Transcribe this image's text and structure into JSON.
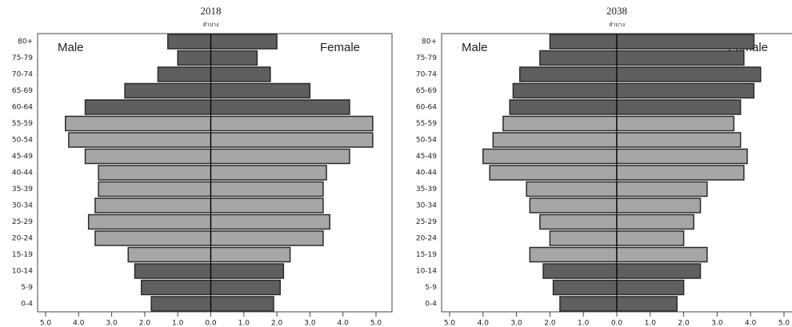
{
  "chart_data": [
    {
      "type": "pyramid",
      "title": "2018",
      "subtitle": "ลำปาง",
      "categories": [
        "0-4",
        "5-9",
        "10-14",
        "15-19",
        "20-24",
        "25-29",
        "30-34",
        "35-39",
        "40-44",
        "45-49",
        "50-54",
        "55-59",
        "60-64",
        "65-69",
        "70-74",
        "75-79",
        "80+"
      ],
      "colors": [
        "#5f5f5f",
        "#5f5f5f",
        "#5f5f5f",
        "#a6a6a6",
        "#a6a6a6",
        "#a6a6a6",
        "#a6a6a6",
        "#a6a6a6",
        "#a6a6a6",
        "#a6a6a6",
        "#a6a6a6",
        "#a6a6a6",
        "#5f5f5f",
        "#5f5f5f",
        "#5f5f5f",
        "#5f5f5f",
        "#5f5f5f"
      ],
      "series": [
        {
          "name": "Male",
          "values": [
            1.8,
            2.1,
            2.3,
            2.5,
            3.5,
            3.7,
            3.5,
            3.4,
            3.4,
            3.8,
            4.3,
            4.4,
            3.8,
            2.6,
            1.6,
            1.0,
            1.3
          ]
        },
        {
          "name": "Female",
          "values": [
            1.9,
            2.1,
            2.2,
            2.4,
            3.4,
            3.6,
            3.4,
            3.4,
            3.5,
            4.2,
            4.9,
            4.9,
            4.2,
            3.0,
            1.8,
            1.4,
            2.0
          ]
        }
      ],
      "xlim": [
        -5,
        5
      ],
      "xticks": [
        {
          "value": -5,
          "label": "5.0"
        },
        {
          "value": -4,
          "label": "4.0"
        },
        {
          "value": -3,
          "label": "3.0"
        },
        {
          "value": -2,
          "label": "2.0"
        },
        {
          "value": -1,
          "label": "1.0"
        },
        {
          "value": 0,
          "label": "0.0"
        },
        {
          "value": 1,
          "label": "1.0"
        },
        {
          "value": 2,
          "label": "2.0"
        },
        {
          "value": 3,
          "label": "3.0"
        },
        {
          "value": 4,
          "label": "4.0"
        },
        {
          "value": 5,
          "label": "5.0"
        }
      ]
    },
    {
      "type": "pyramid",
      "title": "2038",
      "subtitle": "ลำปาง",
      "categories": [
        "0-4",
        "5-9",
        "10-14",
        "15-19",
        "20-24",
        "25-29",
        "30-34",
        "35-39",
        "40-44",
        "45-49",
        "50-54",
        "55-59",
        "60-64",
        "65-69",
        "70-74",
        "75-79",
        "80+"
      ],
      "colors": [
        "#5f5f5f",
        "#5f5f5f",
        "#5f5f5f",
        "#a6a6a6",
        "#a6a6a6",
        "#a6a6a6",
        "#a6a6a6",
        "#a6a6a6",
        "#a6a6a6",
        "#a6a6a6",
        "#a6a6a6",
        "#a6a6a6",
        "#5f5f5f",
        "#5f5f5f",
        "#5f5f5f",
        "#5f5f5f",
        "#5f5f5f"
      ],
      "series": [
        {
          "name": "Male",
          "values": [
            1.7,
            1.9,
            2.2,
            2.6,
            2.0,
            2.3,
            2.6,
            2.7,
            3.8,
            4.0,
            3.7,
            3.4,
            3.2,
            3.1,
            2.9,
            2.3,
            2.0
          ]
        },
        {
          "name": "Female",
          "values": [
            1.8,
            2.0,
            2.5,
            2.7,
            2.0,
            2.3,
            2.5,
            2.7,
            3.8,
            3.9,
            3.7,
            3.5,
            3.7,
            4.1,
            4.3,
            3.8,
            4.1
          ]
        }
      ],
      "xlim": [
        -5,
        5
      ],
      "xticks": [
        {
          "value": -5,
          "label": "5.0"
        },
        {
          "value": -4,
          "label": "4.0"
        },
        {
          "value": -3,
          "label": "3.0"
        },
        {
          "value": -2,
          "label": "2.0"
        },
        {
          "value": -1,
          "label": "1.0"
        },
        {
          "value": 0,
          "label": "0.0"
        },
        {
          "value": 1,
          "label": "1.0"
        },
        {
          "value": 2,
          "label": "2.0"
        },
        {
          "value": 3,
          "label": "3.0"
        },
        {
          "value": 4,
          "label": "4.0"
        },
        {
          "value": 5,
          "label": "5.0"
        }
      ]
    }
  ]
}
